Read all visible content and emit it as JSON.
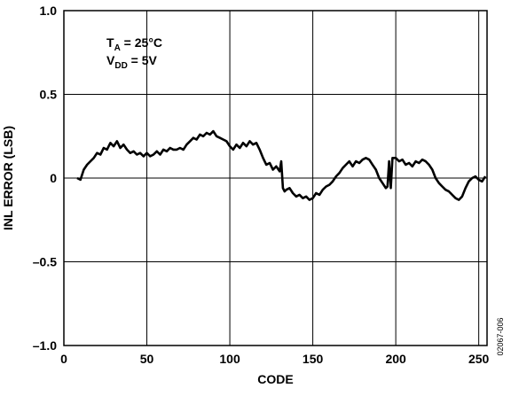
{
  "chart_data": {
    "type": "line",
    "xlabel": "CODE",
    "ylabel": "INL ERROR (LSB)",
    "xlim": [
      0,
      255
    ],
    "ylim": [
      -1.0,
      1.0
    ],
    "x_ticks": [
      0,
      50,
      100,
      150,
      200,
      250
    ],
    "x_tick_labels": [
      "0",
      "50",
      "100",
      "150",
      "200",
      "250"
    ],
    "y_ticks": [
      1.0,
      0.5,
      0,
      -0.5,
      -1.0
    ],
    "y_tick_labels": [
      "1.0",
      "0.5",
      "0",
      "–0.5",
      "–1.0"
    ],
    "x_gridlines": [
      0,
      50,
      100,
      150,
      200,
      250
    ],
    "y_gridlines": [
      -1.0,
      -0.5,
      0,
      0.5,
      1.0
    ],
    "grid": true,
    "annotation": {
      "line1": {
        "main": "T",
        "sub": "A",
        "rest": " = 25°C"
      },
      "line2": {
        "main": "V",
        "sub": "DD",
        "rest": " = 5V"
      }
    },
    "figure_id": "02067-006",
    "series": [
      {
        "x": [
          8,
          10,
          12,
          14,
          16,
          18,
          20,
          22,
          24,
          26,
          28,
          30,
          32,
          34,
          36,
          38,
          40,
          42,
          44,
          46,
          48,
          50,
          52,
          54,
          56,
          58,
          60,
          62,
          64,
          66,
          68,
          70,
          72,
          74,
          76,
          78,
          80,
          82,
          84,
          86,
          88,
          90,
          92,
          94,
          96,
          98,
          100,
          102,
          104,
          106,
          108,
          110,
          112,
          114,
          116,
          118,
          120,
          122,
          124,
          126,
          128,
          130,
          131,
          132,
          133,
          134,
          136,
          138,
          140,
          142,
          144,
          146,
          148,
          150,
          152,
          154,
          156,
          158,
          160,
          162,
          164,
          166,
          168,
          170,
          172,
          174,
          176,
          178,
          180,
          182,
          184,
          186,
          188,
          190,
          192,
          194,
          195,
          196,
          197,
          198,
          200,
          202,
          204,
          206,
          208,
          210,
          212,
          214,
          216,
          218,
          220,
          222,
          224,
          226,
          228,
          230,
          232,
          234,
          236,
          238,
          240,
          242,
          244,
          246,
          248,
          250,
          252,
          254
        ],
        "y": [
          0.0,
          -0.01,
          0.05,
          0.08,
          0.1,
          0.12,
          0.15,
          0.14,
          0.18,
          0.17,
          0.21,
          0.19,
          0.22,
          0.18,
          0.2,
          0.17,
          0.15,
          0.16,
          0.14,
          0.15,
          0.13,
          0.15,
          0.13,
          0.14,
          0.16,
          0.14,
          0.17,
          0.16,
          0.18,
          0.17,
          0.17,
          0.18,
          0.17,
          0.2,
          0.22,
          0.24,
          0.23,
          0.26,
          0.25,
          0.27,
          0.26,
          0.28,
          0.25,
          0.24,
          0.23,
          0.22,
          0.19,
          0.17,
          0.2,
          0.18,
          0.21,
          0.19,
          0.22,
          0.2,
          0.21,
          0.17,
          0.12,
          0.08,
          0.09,
          0.05,
          0.07,
          0.04,
          0.1,
          -0.06,
          -0.08,
          -0.07,
          -0.06,
          -0.09,
          -0.11,
          -0.1,
          -0.12,
          -0.11,
          -0.13,
          -0.12,
          -0.09,
          -0.1,
          -0.07,
          -0.05,
          -0.04,
          -0.02,
          0.01,
          0.03,
          0.06,
          0.08,
          0.1,
          0.07,
          0.1,
          0.09,
          0.11,
          0.12,
          0.11,
          0.08,
          0.05,
          0.0,
          -0.03,
          -0.06,
          -0.05,
          0.1,
          -0.06,
          0.12,
          0.12,
          0.1,
          0.11,
          0.08,
          0.09,
          0.07,
          0.1,
          0.09,
          0.11,
          0.1,
          0.08,
          0.05,
          0.0,
          -0.03,
          -0.05,
          -0.07,
          -0.08,
          -0.1,
          -0.12,
          -0.13,
          -0.11,
          -0.06,
          -0.02,
          0.0,
          0.01,
          -0.01,
          -0.02,
          0.01
        ]
      }
    ]
  }
}
